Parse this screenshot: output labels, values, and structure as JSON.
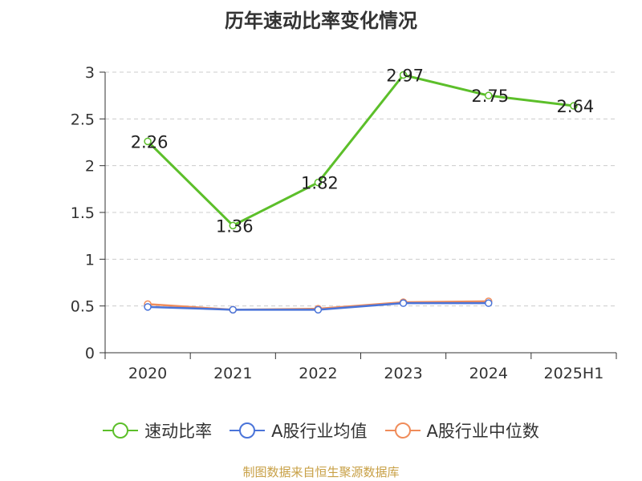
{
  "chart_data": {
    "type": "line",
    "title": "历年速动比率变化情况",
    "categories": [
      "2020",
      "2021",
      "2022",
      "2023",
      "2024",
      "2025H1"
    ],
    "ylim": [
      0,
      3
    ],
    "yticks": [
      "0",
      "0.5",
      "1",
      "1.5",
      "2",
      "2.5",
      "3"
    ],
    "grid": "horizontal-dashed",
    "legend_position": "bottom",
    "series": [
      {
        "name": "速动比率",
        "color": "#5cbf2a",
        "values": [
          2.26,
          1.36,
          1.82,
          2.97,
          2.75,
          2.64
        ],
        "labels": [
          "2.26",
          "1.36",
          "1.82",
          "2.97",
          "2.75",
          "2.64"
        ]
      },
      {
        "name": "A股行业均值",
        "color": "#4a74d9",
        "values": [
          0.49,
          0.46,
          0.46,
          0.53,
          0.53,
          null
        ]
      },
      {
        "name": "A股行业中位数",
        "color": "#f08c5a",
        "values": [
          0.52,
          0.46,
          0.47,
          0.54,
          0.55,
          null
        ]
      }
    ]
  },
  "source": "制图数据来自恒生聚源数据库"
}
